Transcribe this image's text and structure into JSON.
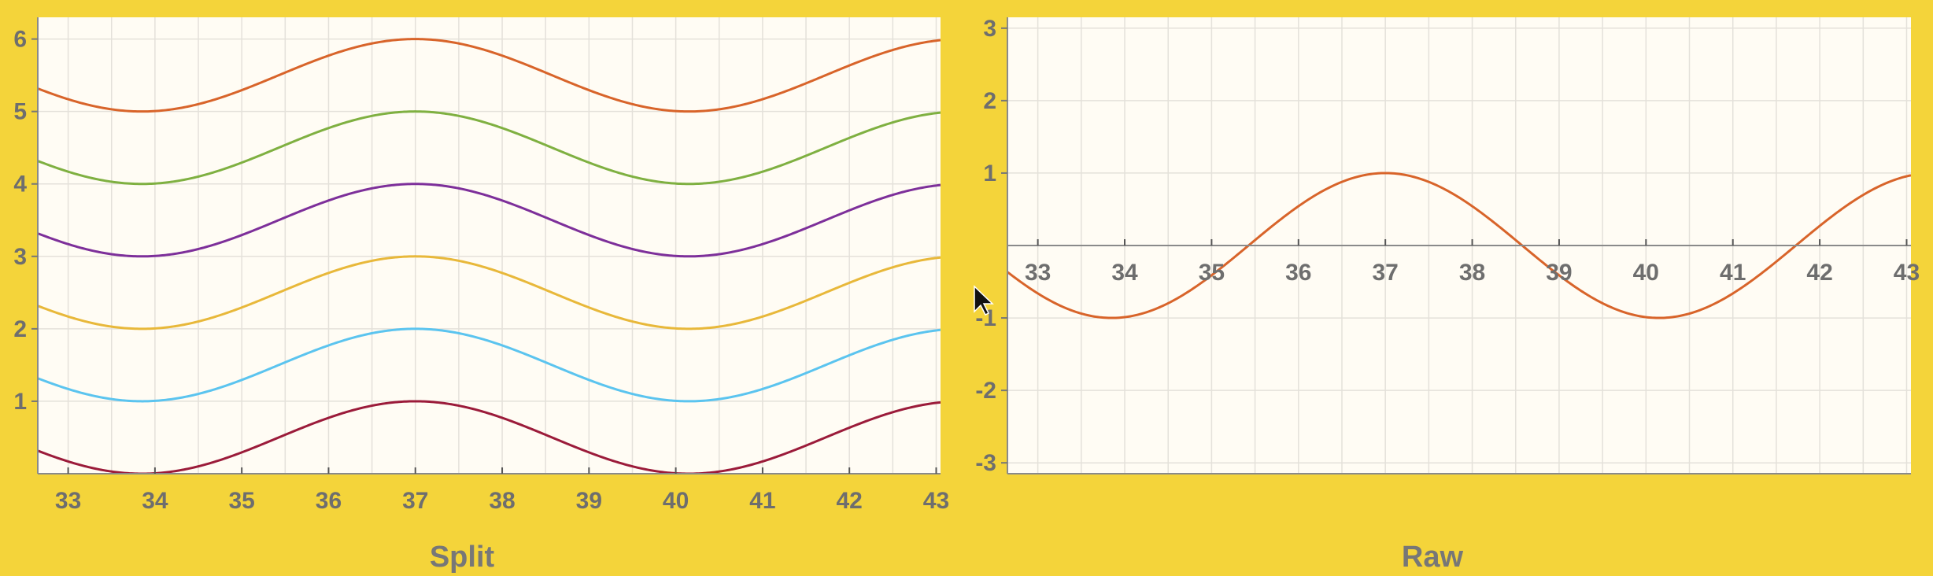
{
  "background_color": "#f4d43a",
  "plot_background": "#fffcf4",
  "chart_data": [
    {
      "type": "line",
      "title": "Split",
      "xlim": [
        32.65,
        43.05
      ],
      "ylim": [
        0,
        6.3
      ],
      "x_ticks": [
        33,
        34,
        35,
        36,
        37,
        38,
        39,
        40,
        41,
        42,
        43
      ],
      "x_tick_labels": [
        "33",
        "34",
        "35",
        "36",
        "37",
        "38",
        "39",
        "40",
        "41",
        "42",
        "43"
      ],
      "y_ticks": [
        1,
        2,
        3,
        4,
        5,
        6
      ],
      "y_tick_labels": [
        "1",
        "2",
        "3",
        "4",
        "5",
        "6"
      ],
      "grid": true,
      "wave": {
        "amplitude": 0.5,
        "peak_x": 37.0,
        "period": 6.3
      },
      "series": [
        {
          "offset": 0.5,
          "color": "#9b1b3a"
        },
        {
          "offset": 1.5,
          "color": "#5bc4ef"
        },
        {
          "offset": 2.5,
          "color": "#e8b83a"
        },
        {
          "offset": 3.5,
          "color": "#7d2f9a"
        },
        {
          "offset": 4.5,
          "color": "#7fb041"
        },
        {
          "offset": 5.5,
          "color": "#d8642a"
        }
      ]
    },
    {
      "type": "line",
      "title": "Raw",
      "xlim": [
        32.65,
        43.05
      ],
      "ylim": [
        -3.15,
        3.15
      ],
      "x_ticks": [
        33,
        34,
        35,
        36,
        37,
        38,
        39,
        40,
        41,
        42,
        43
      ],
      "x_tick_labels": [
        "33",
        "34",
        "35",
        "36",
        "37",
        "38",
        "39",
        "40",
        "41",
        "42",
        "43"
      ],
      "y_ticks": [
        -3,
        -2,
        -1,
        1,
        2,
        3
      ],
      "y_tick_labels": [
        "-3",
        "-2",
        "-1",
        "1",
        "2",
        "3"
      ],
      "grid": true,
      "wave": {
        "amplitude": 1.0,
        "peak_x": 37.0,
        "period": 6.3
      },
      "series": [
        {
          "offset": 0,
          "color": "#d8642a"
        }
      ]
    }
  ]
}
